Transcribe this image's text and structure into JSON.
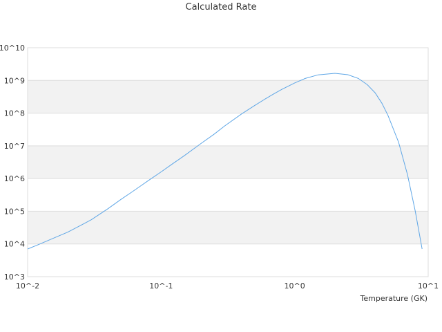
{
  "chart_data": {
    "type": "line",
    "title": "Calculated Rate",
    "xlabel": "Temperature (GK)",
    "ylabel": "",
    "x_scale": "log",
    "y_scale": "log",
    "xlim": [
      0.01,
      10
    ],
    "ylim": [
      1000,
      10000000000
    ],
    "x_tick_labels": [
      "10^-2",
      "10^-1",
      "10^0",
      "10^1"
    ],
    "y_tick_labels": [
      "10^3",
      "10^4",
      "10^5",
      "10^6",
      "10^7",
      "10^8",
      "10^9",
      "10^10"
    ],
    "grid": "alternating horizontal bands",
    "colors": {
      "line": "#5ea6e6",
      "band": "#f2f2f2",
      "grid": "#dddddd"
    },
    "series": [
      {
        "x": [
          0.01,
          0.012,
          0.015,
          0.02,
          0.025,
          0.03,
          0.04,
          0.05,
          0.06,
          0.07,
          0.08,
          0.1,
          0.12,
          0.15,
          0.2,
          0.25,
          0.3,
          0.4,
          0.5,
          0.6,
          0.7,
          0.8,
          1.0,
          1.2,
          1.5,
          2.0,
          2.5,
          3.0,
          3.5,
          4.0,
          4.5,
          5.0,
          6.0,
          7.0,
          8.0,
          9.0
        ],
        "y": [
          7000,
          9500,
          14000,
          23000,
          37000,
          55000,
          120000,
          230000,
          380000,
          590000,
          860000,
          1600000,
          2700000,
          5100000,
          12000000,
          23000000,
          41000000,
          94000000,
          170000000,
          270000000,
          390000000,
          530000000,
          840000000,
          1150000000,
          1480000000,
          1650000000,
          1500000000,
          1150000000,
          740000000,
          420000000,
          200000000,
          85000000,
          13000000,
          1300000,
          100000,
          7000
        ]
      }
    ]
  }
}
